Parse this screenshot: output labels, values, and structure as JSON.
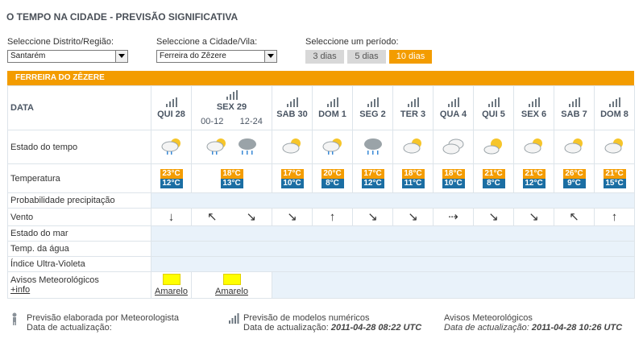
{
  "title": "O TEMPO NA CIDADE - PREVISÃO SIGNIFICATIVA",
  "selectors": {
    "district_label": "Seleccione Distrito/Região:",
    "district_value": "Santarém",
    "city_label": "Seleccione a Cidade/Vila:",
    "city_value": "Ferreira do Zêzere",
    "period_label": "Seleccione um período:",
    "periods": [
      "3 dias",
      "5 dias",
      "10 dias"
    ],
    "active_period": "10 dias"
  },
  "location_band": "FERREIRA DO ZÊZERE",
  "rows": {
    "data": "DATA",
    "estado": "Estado do tempo",
    "temperatura": "Temperatura",
    "probabilidade": "Probabilidade precipitação",
    "vento": "Vento",
    "mar": "Estado do mar",
    "agua": "Temp. da água",
    "uv": "Índice Ultra-Violeta",
    "avisos": "Avisos Meteorológicos",
    "info_link": "+info"
  },
  "sex29_periods": [
    "00-12",
    "12-24"
  ],
  "days": [
    {
      "label": "QUI 28",
      "tmax": "23°C",
      "tmin": "12°C",
      "weather": "sun-cloud-rain-icon",
      "wind": "↓",
      "warning": "Amarelo"
    },
    {
      "label": "SEX 29",
      "tmax": "18°C",
      "tmin": "13°C",
      "weather": "rain-icon",
      "wind": "↖",
      "wind2": "↘",
      "warning": "Amarelo"
    },
    {
      "label": "SAB 30",
      "tmax": "17°C",
      "tmin": "10°C",
      "weather": "partly-cloudy-icon",
      "wind": "↘"
    },
    {
      "label": "DOM 1",
      "tmax": "20°C",
      "tmin": "8°C",
      "weather": "sun-cloud-rain-icon",
      "wind": "↑"
    },
    {
      "label": "SEG 2",
      "tmax": "17°C",
      "tmin": "12°C",
      "weather": "rain-icon",
      "wind": "↘"
    },
    {
      "label": "TER 3",
      "tmax": "18°C",
      "tmin": "11°C",
      "weather": "partly-cloudy-icon",
      "wind": "↘"
    },
    {
      "label": "QUA 4",
      "tmax": "18°C",
      "tmin": "10°C",
      "weather": "cloudy-icon",
      "wind": "⇢"
    },
    {
      "label": "QUI 5",
      "tmax": "21°C",
      "tmin": "8°C",
      "weather": "sun-cloud-icon",
      "wind": "↘"
    },
    {
      "label": "SEX 6",
      "tmax": "21°C",
      "tmin": "12°C",
      "weather": "partly-cloudy-icon",
      "wind": "↘"
    },
    {
      "label": "SAB 7",
      "tmax": "26°C",
      "tmin": "9°C",
      "weather": "partly-cloudy-icon",
      "wind": "↖"
    },
    {
      "label": "DOM 8",
      "tmax": "21°C",
      "tmin": "15°C",
      "weather": "partly-cloudy-icon",
      "wind": "↑"
    }
  ],
  "footer": {
    "meteorologist_line1": "Previsão elaborada por Meteorologista",
    "meteorologist_line2": "Data de actualização:",
    "models_line1": "Previsão de modelos numéricos",
    "models_line2_label": "Data de actualização:",
    "models_date": "2011-04-28 08:22 UTC",
    "warnings_line1": "Avisos Meteorológicos",
    "warnings_line2_label": "Data de actualização:",
    "warnings_date": "2011-04-28 10:26 UTC"
  },
  "colors": {
    "accent": "#f39c00",
    "tmin": "#1b6ea3",
    "shade": "#e9f2fa",
    "warning_yellow": "#ffff00"
  }
}
